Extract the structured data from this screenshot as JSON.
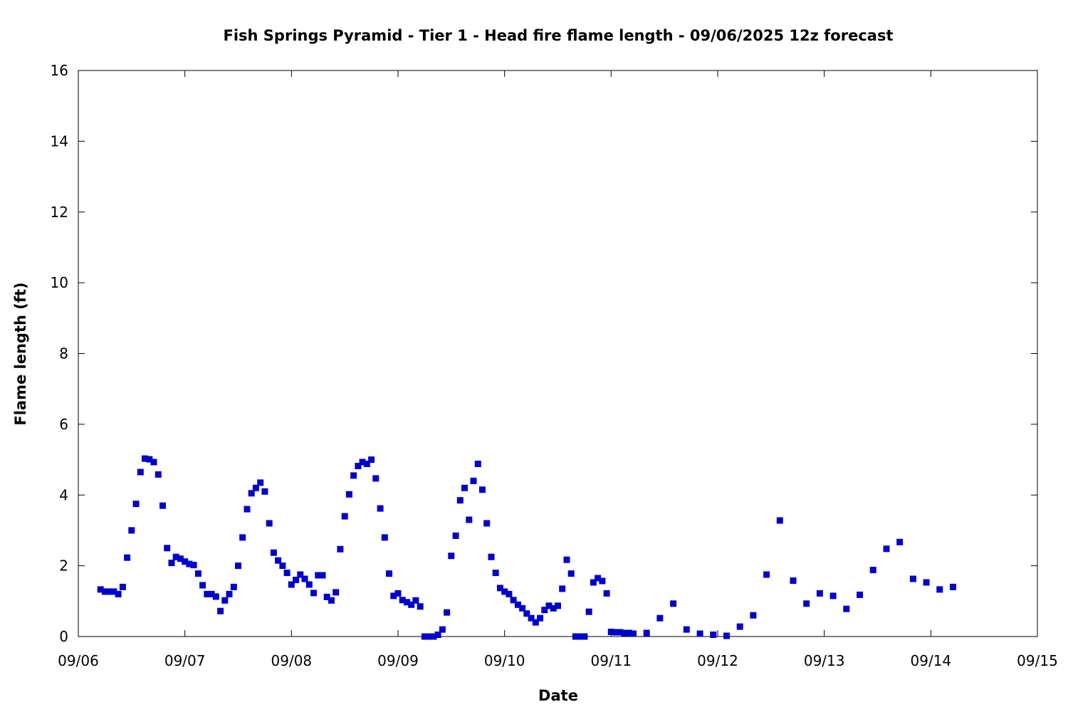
{
  "chart_data": {
    "type": "scatter",
    "title": "Fish Springs Pyramid - Tier 1 - Head fire flame length - 09/06/2025 12z forecast",
    "xlabel": "Date",
    "ylabel": "Flame length (ft)",
    "xlim": [
      "09/06 00:00",
      "09/15 00:00"
    ],
    "ylim": [
      0,
      16
    ],
    "x_ticks": [
      "09/06",
      "09/07",
      "09/08",
      "09/09",
      "09/10",
      "09/11",
      "09/12",
      "09/13",
      "09/14",
      "09/15"
    ],
    "y_ticks": [
      "0",
      "2",
      "4",
      "6",
      "8",
      "10",
      "12",
      "14",
      "16"
    ],
    "grid": false,
    "legend": "none",
    "marker_color": "#0000cc",
    "marker": "square",
    "series": [
      {
        "x": [
          "09/06 05:00",
          "09/06 06:00",
          "09/06 07:00",
          "09/06 08:00",
          "09/06 09:00",
          "09/06 10:00",
          "09/06 11:00",
          "09/06 12:00",
          "09/06 13:00",
          "09/06 14:00",
          "09/06 15:00",
          "09/06 16:00",
          "09/06 17:00",
          "09/06 18:00",
          "09/06 19:00",
          "09/06 20:00",
          "09/06 21:00",
          "09/06 22:00",
          "09/06 23:00",
          "09/07 00:00",
          "09/07 01:00",
          "09/07 02:00",
          "09/07 03:00",
          "09/07 04:00",
          "09/07 05:00",
          "09/07 06:00",
          "09/07 07:00",
          "09/07 08:00",
          "09/07 09:00",
          "09/07 10:00",
          "09/07 11:00",
          "09/07 12:00",
          "09/07 13:00",
          "09/07 14:00",
          "09/07 15:00",
          "09/07 16:00",
          "09/07 17:00",
          "09/07 18:00",
          "09/07 19:00",
          "09/07 20:00",
          "09/07 21:00",
          "09/07 22:00",
          "09/07 23:00",
          "09/08 00:00",
          "09/08 01:00",
          "09/08 02:00",
          "09/08 03:00",
          "09/08 04:00",
          "09/08 05:00",
          "09/08 06:00",
          "09/08 07:00",
          "09/08 08:00",
          "09/08 09:00",
          "09/08 10:00",
          "09/08 11:00",
          "09/08 12:00",
          "09/08 13:00",
          "09/08 14:00",
          "09/08 15:00",
          "09/08 16:00",
          "09/08 17:00",
          "09/08 18:00",
          "09/08 19:00",
          "09/08 20:00",
          "09/08 21:00",
          "09/08 22:00",
          "09/08 23:00",
          "09/09 00:00",
          "09/09 01:00",
          "09/09 02:00",
          "09/09 03:00",
          "09/09 04:00",
          "09/09 05:00",
          "09/09 06:00",
          "09/09 07:00",
          "09/09 08:00",
          "09/09 09:00",
          "09/09 10:00",
          "09/09 11:00",
          "09/09 12:00",
          "09/09 13:00",
          "09/09 14:00",
          "09/09 15:00",
          "09/09 16:00",
          "09/09 17:00",
          "09/09 18:00",
          "09/09 19:00",
          "09/09 20:00",
          "09/09 21:00",
          "09/09 22:00",
          "09/09 23:00",
          "09/10 00:00",
          "09/10 01:00",
          "09/10 02:00",
          "09/10 03:00",
          "09/10 04:00",
          "09/10 05:00",
          "09/10 06:00",
          "09/10 07:00",
          "09/10 08:00",
          "09/10 09:00",
          "09/10 10:00",
          "09/10 11:00",
          "09/10 12:00",
          "09/10 13:00",
          "09/10 14:00",
          "09/10 15:00",
          "09/10 16:00",
          "09/10 17:00",
          "09/10 18:00",
          "09/10 19:00",
          "09/10 20:00",
          "09/10 21:00",
          "09/10 22:00",
          "09/10 23:00",
          "09/11 00:00",
          "09/11 01:00",
          "09/11 02:00",
          "09/11 03:00",
          "09/11 04:00",
          "09/11 05:00",
          "09/11 08:00",
          "09/11 11:00",
          "09/11 14:00",
          "09/11 17:00",
          "09/11 20:00",
          "09/11 23:00",
          "09/12 02:00",
          "09/12 05:00",
          "09/12 08:00",
          "09/12 11:00",
          "09/12 14:00",
          "09/12 17:00",
          "09/12 20:00",
          "09/12 23:00",
          "09/13 02:00",
          "09/13 05:00",
          "09/13 08:00",
          "09/13 11:00",
          "09/13 14:00",
          "09/13 17:00",
          "09/13 20:00",
          "09/13 23:00",
          "09/14 02:00",
          "09/14 05:00"
        ],
        "y": [
          1.33,
          1.27,
          1.27,
          1.27,
          1.2,
          1.4,
          2.23,
          3.0,
          3.75,
          4.65,
          5.03,
          5.01,
          4.93,
          4.58,
          3.7,
          2.5,
          2.08,
          2.25,
          2.2,
          2.12,
          2.05,
          2.02,
          1.78,
          1.45,
          1.2,
          1.2,
          1.13,
          0.72,
          1.02,
          1.2,
          1.4,
          2.0,
          2.8,
          3.6,
          4.05,
          4.2,
          4.35,
          4.1,
          3.2,
          2.37,
          2.15,
          2.0,
          1.8,
          1.47,
          1.6,
          1.75,
          1.63,
          1.47,
          1.23,
          1.73,
          1.73,
          1.12,
          1.02,
          1.25,
          2.47,
          3.4,
          4.02,
          4.55,
          4.82,
          4.93,
          4.88,
          5.0,
          4.47,
          3.62,
          2.8,
          1.78,
          1.15,
          1.22,
          1.03,
          0.97,
          0.9,
          1.02,
          0.85,
          0.0,
          0.0,
          0.0,
          0.05,
          0.2,
          0.68,
          2.28,
          2.85,
          3.85,
          4.2,
          3.3,
          4.4,
          4.88,
          4.15,
          3.2,
          2.25,
          1.8,
          1.37,
          1.27,
          1.2,
          1.03,
          0.9,
          0.8,
          0.65,
          0.52,
          0.4,
          0.52,
          0.75,
          0.87,
          0.8,
          0.87,
          1.35,
          2.17,
          1.78,
          0.0,
          0.0,
          0.0,
          0.7,
          1.53,
          1.65,
          1.57,
          1.22,
          0.13,
          0.12,
          0.12,
          0.1,
          0.1,
          0.08,
          0.1,
          0.52,
          0.93,
          0.2,
          0.08,
          0.05,
          0.02,
          0.28,
          0.6,
          1.75,
          3.28,
          1.58,
          0.93,
          1.22,
          1.15,
          0.78,
          1.18,
          1.88,
          2.48,
          2.67,
          1.63,
          1.53,
          1.33,
          1.4
        ]
      }
    ]
  }
}
